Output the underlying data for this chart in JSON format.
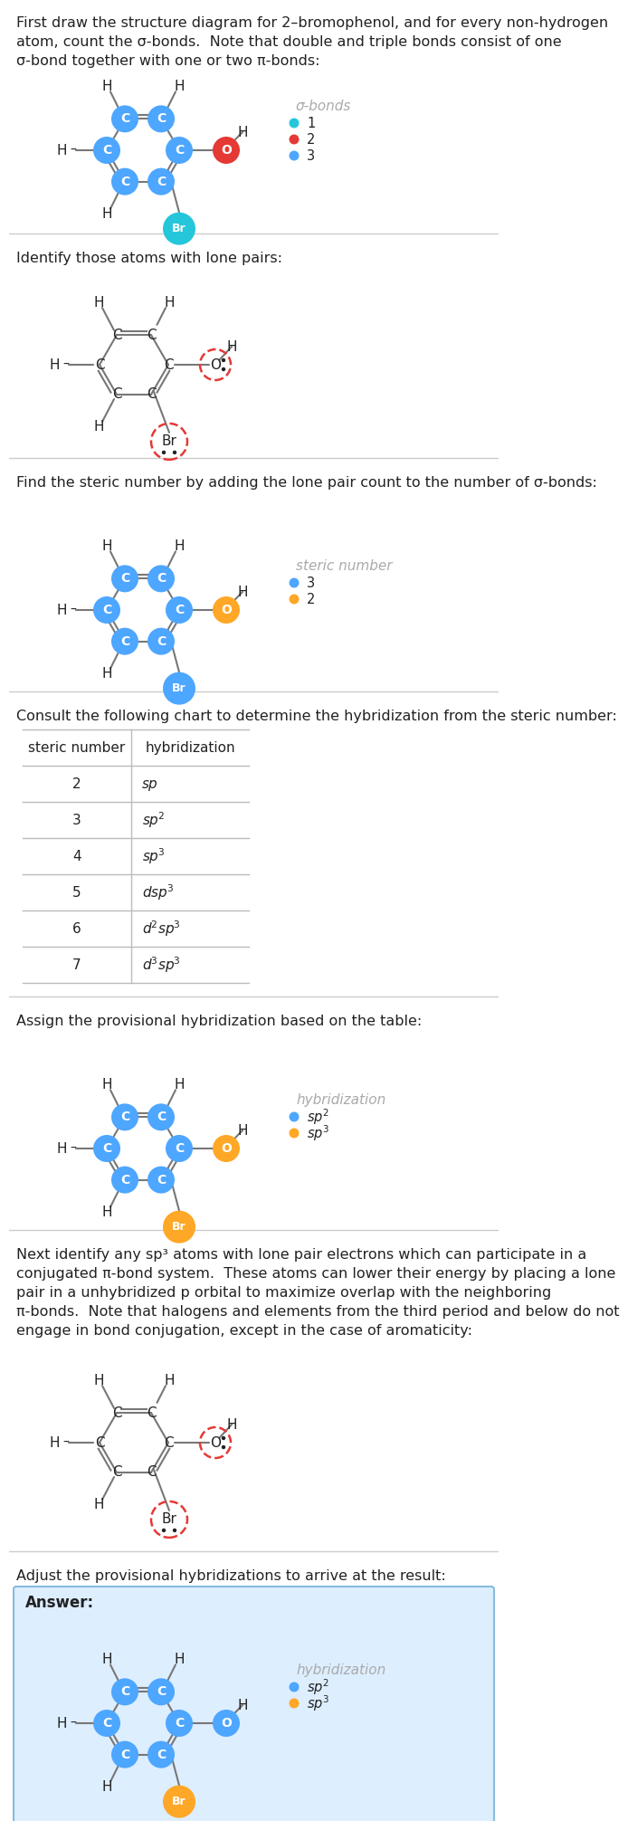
{
  "title1": "First draw the structure diagram for 2–bromophenol, and for every non-hydrogen\natom, count the σ-bonds.  Note that double and triple bonds consist of one\nσ-bond together with one or two π-bonds:",
  "title2": "Identify those atoms with lone pairs:",
  "title3": "Find the steric number by adding the lone pair count to the number of σ-bonds:",
  "title4": "Consult the following chart to determine the hybridization from the steric number:",
  "title5": "Assign the provisional hybridization based on the table:",
  "title6": "Next identify any sp³ atoms with lone pair electrons which can participate in a\nconjugated π-bond system.  These atoms can lower their energy by placing a lone\npair in a unhybridized p orbital to maximize overlap with the neighboring\nπ-bonds.  Note that halogens and elements from the third period and below do not\nengage in bond conjugation, except in the case of aromaticity:",
  "title7": "Adjust the provisional hybridizations to arrive at the result:",
  "answer_label": "Answer:",
  "c_color_s1": "#4da6ff",
  "o_color_s1": "#e53935",
  "br_color_s1": "#26c6da",
  "c_color_s3": "#4da6ff",
  "o_color_s3": "#ffa726",
  "br_color_s3": "#4da6ff",
  "sp2_color": "#4da6ff",
  "sp3_color": "#ffa726",
  "bond_color": "#777777",
  "lone_pair_color": "#e53935",
  "text_color": "#222222",
  "legend_color": "#aaaaaa",
  "bg_color": "#ffffff",
  "answer_bg": "#ddeeff",
  "answer_border": "#88bbdd",
  "sigma1_color": "#26c6da",
  "sigma2_color": "#e53935",
  "sigma3_color": "#4da6ff",
  "steric3_color": "#4da6ff",
  "steric2_color": "#ffa726"
}
